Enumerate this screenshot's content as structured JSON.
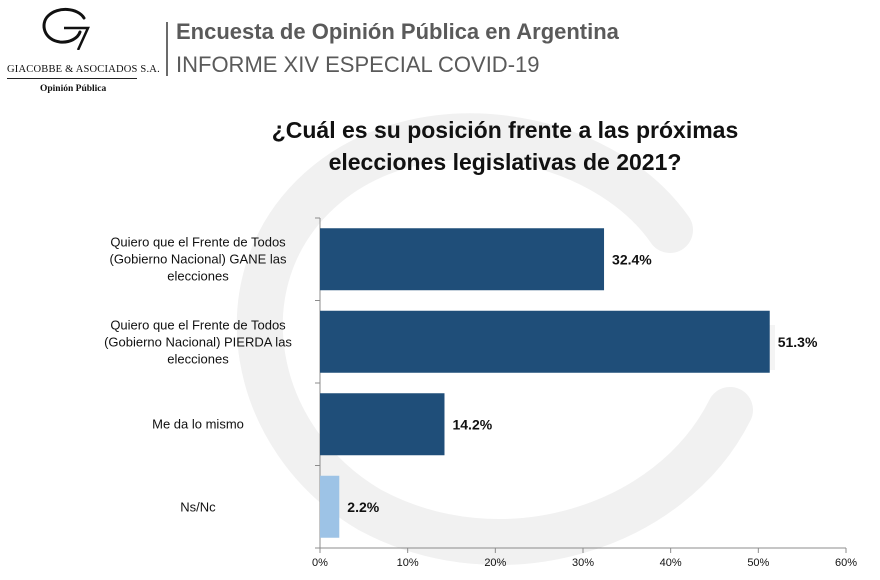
{
  "logo": {
    "name": "Giacobbe & Asociados S.A.",
    "name_display": "GIACOBBE & ASOCIADOS S.A.",
    "subtitle": "Opinión Pública"
  },
  "header": {
    "title": "Encuesta de Opinión Pública en Argentina",
    "subtitle": "INFORME XIV ESPECIAL COVID-19"
  },
  "chart_data": {
    "type": "bar",
    "orientation": "horizontal",
    "title_lines": [
      "¿Cuál es su posición frente a las próximas",
      "elecciones legislativas de 2021?"
    ],
    "categories": [
      [
        "Quiero que el Frente de Todos",
        "(Gobierno Nacional) GANE las",
        "elecciones"
      ],
      [
        "Quiero que el Frente de Todos",
        "(Gobierno Nacional) PIERDA las",
        "elecciones"
      ],
      [
        "Me da lo mismo"
      ],
      [
        "Ns/Nc"
      ]
    ],
    "values": [
      32.4,
      51.3,
      14.2,
      2.2
    ],
    "value_labels": [
      "32.4%",
      "51.3%",
      "14.2%",
      "2.2%"
    ],
    "bar_colors": [
      "#1f4e79",
      "#1f4e79",
      "#1f4e79",
      "#9dc3e6"
    ],
    "xlim": [
      0,
      60
    ],
    "x_ticks": [
      0,
      10,
      20,
      30,
      40,
      50,
      60
    ],
    "x_tick_labels": [
      "0%",
      "10%",
      "20%",
      "30%",
      "40%",
      "50%",
      "60%"
    ],
    "grid": false,
    "legend": "none"
  }
}
